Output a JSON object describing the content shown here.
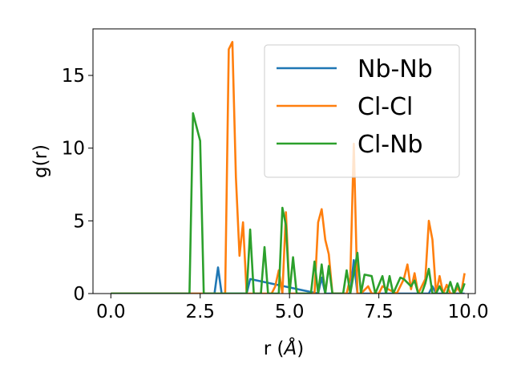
{
  "chart_data": {
    "type": "line",
    "xlabel": "r (",
    "xlabel_unit": "Å",
    "xlabel_close": ")",
    "ylabel": "g(r)",
    "xlim": [
      -0.5,
      10.2
    ],
    "ylim": [
      0,
      18.2
    ],
    "xticks": [
      0.0,
      2.5,
      5.0,
      7.5,
      10.0
    ],
    "xtick_labels": [
      "0.0",
      "2.5",
      "5.0",
      "7.5",
      "10.0"
    ],
    "yticks": [
      0,
      5,
      10,
      15
    ],
    "ytick_labels": [
      "0",
      "5",
      "10",
      "15"
    ],
    "grid": false,
    "legend_position": "top-right",
    "series": [
      {
        "name": "Nb-Nb",
        "color": "#1f77b4",
        "x": [
          0.0,
          2.9,
          3.0,
          3.1,
          3.8,
          3.9,
          5.8,
          5.9,
          6.0,
          6.7,
          6.8,
          6.9,
          8.9,
          9.0,
          9.1,
          9.9
        ],
        "y": [
          0,
          0,
          1.8,
          0,
          0,
          1.0,
          0,
          1.1,
          0,
          0,
          2.3,
          0,
          0,
          0.5,
          0,
          0
        ]
      },
      {
        "name": "Cl-Cl",
        "color": "#ff7f0e",
        "x": [
          0.0,
          3.2,
          3.3,
          3.4,
          3.5,
          3.6,
          3.7,
          3.8,
          3.9,
          4.0,
          4.4,
          4.5,
          4.6,
          4.7,
          4.8,
          4.9,
          5.0,
          5.1,
          5.7,
          5.8,
          5.9,
          6.0,
          6.1,
          6.2,
          6.3,
          6.6,
          6.7,
          6.8,
          6.9,
          7.0,
          7.2,
          7.3,
          7.5,
          7.6,
          8.0,
          8.1,
          8.2,
          8.3,
          8.4,
          8.5,
          8.6,
          8.8,
          8.9,
          9.0,
          9.1,
          9.2,
          9.3,
          9.4,
          9.5,
          9.6,
          9.7,
          9.8,
          9.9
        ],
        "y": [
          0,
          0,
          16.8,
          17.3,
          8.0,
          2.6,
          4.9,
          0,
          0,
          0,
          0,
          0,
          0.5,
          1.6,
          0,
          5.6,
          0,
          0,
          0,
          4.9,
          5.8,
          3.7,
          2.7,
          0,
          0,
          0,
          1.1,
          10.3,
          0,
          0,
          0.5,
          0,
          0,
          0.5,
          0,
          0.5,
          1.0,
          2.0,
          0.3,
          1.4,
          0,
          1.0,
          5.0,
          3.7,
          0,
          1.2,
          0,
          0.6,
          0,
          0,
          0.4,
          0,
          1.4
        ]
      },
      {
        "name": "Cl-Nb",
        "color": "#2ca02c",
        "x": [
          0.0,
          2.2,
          2.3,
          2.5,
          2.6,
          3.8,
          3.9,
          4.0,
          4.2,
          4.3,
          4.4,
          4.7,
          4.8,
          4.9,
          5.0,
          5.1,
          5.2,
          5.6,
          5.7,
          5.8,
          5.9,
          6.0,
          6.1,
          6.2,
          6.3,
          6.5,
          6.6,
          6.7,
          6.8,
          6.9,
          7.0,
          7.1,
          7.3,
          7.4,
          7.6,
          7.7,
          7.8,
          7.9,
          8.1,
          8.2,
          8.4,
          8.5,
          8.6,
          8.7,
          8.8,
          8.9,
          9.0,
          9.1,
          9.2,
          9.3,
          9.4,
          9.5,
          9.6,
          9.7,
          9.8,
          9.9
        ],
        "y": [
          0,
          0,
          12.4,
          10.5,
          0,
          0,
          4.4,
          0,
          0,
          3.2,
          0,
          0,
          5.9,
          4.7,
          0,
          2.5,
          0,
          0,
          2.2,
          0,
          2.0,
          0,
          1.9,
          0,
          0,
          0,
          1.6,
          0,
          1.4,
          2.8,
          0,
          1.3,
          1.2,
          0,
          1.2,
          0,
          1.2,
          0,
          1.1,
          1.0,
          0.5,
          0.9,
          0,
          0,
          0.7,
          1.7,
          0,
          0,
          0.5,
          0,
          0,
          0.8,
          0,
          0.7,
          0,
          0.7
        ]
      }
    ]
  }
}
